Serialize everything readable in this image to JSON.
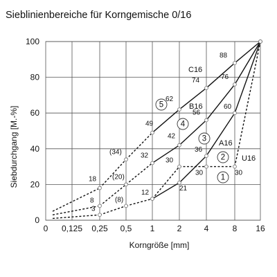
{
  "chart_data": {
    "type": "line",
    "title": "Sieblinienbereiche für Korngemische 0/16",
    "xlabel": "Korngröße  [mm]",
    "ylabel": "Siebdurchgang  [M.-%]",
    "x_scale": "log-like (sieve sizes)",
    "x_ticks": [
      "0",
      "0,125",
      "0,25",
      "0,5",
      "1",
      "2",
      "4",
      "8",
      "16"
    ],
    "y_ticks": [
      "0",
      "20",
      "40",
      "60",
      "80",
      "100"
    ],
    "ylim": [
      0,
      100
    ],
    "grid": true,
    "series": [
      {
        "name": "C16",
        "x": [
          "0,25",
          "0,5",
          "1",
          "2",
          "4",
          "8",
          "16"
        ],
        "values": [
          18,
          34,
          49,
          62,
          74,
          88,
          100
        ],
        "labels": [
          "18",
          "(34)",
          "49",
          "62",
          "74",
          "88",
          ""
        ],
        "dashed_segments": [
          0,
          1
        ]
      },
      {
        "name": "B16",
        "x": [
          "0,25",
          "0,5",
          "1",
          "2",
          "4",
          "8",
          "16"
        ],
        "values": [
          8,
          20,
          32,
          42,
          56,
          76,
          100
        ],
        "labels": [
          "8",
          "(20)",
          "32",
          "42",
          "56",
          "76",
          ""
        ],
        "dashed_segments": [
          0,
          1
        ]
      },
      {
        "name": "A16",
        "x": [
          "0,25",
          "0,5",
          "1",
          "2",
          "4",
          "8",
          "16"
        ],
        "values": [
          3,
          8,
          12,
          21,
          36,
          60,
          100
        ],
        "labels": [
          "3",
          "(8)",
          "12",
          "21",
          "36",
          "60",
          ""
        ],
        "dashed_segments": [
          0,
          1
        ]
      },
      {
        "name": "U16",
        "x": [
          "1",
          "2",
          "4",
          "8",
          "16"
        ],
        "values": [
          12,
          30,
          30,
          30,
          100
        ],
        "labels": [
          "",
          "30",
          "30",
          "30",
          ""
        ],
        "dashed_segments": [
          0,
          1,
          2,
          3
        ]
      }
    ],
    "lead_in": [
      {
        "series": "C16",
        "from_value": 5,
        "to_value": 18
      },
      {
        "series": "B16",
        "from_value": 3,
        "to_value": 8
      },
      {
        "series": "A16",
        "from_value": 1,
        "to_value": 3
      }
    ],
    "zones": [
      "1",
      "2",
      "3",
      "4",
      "5"
    ]
  }
}
